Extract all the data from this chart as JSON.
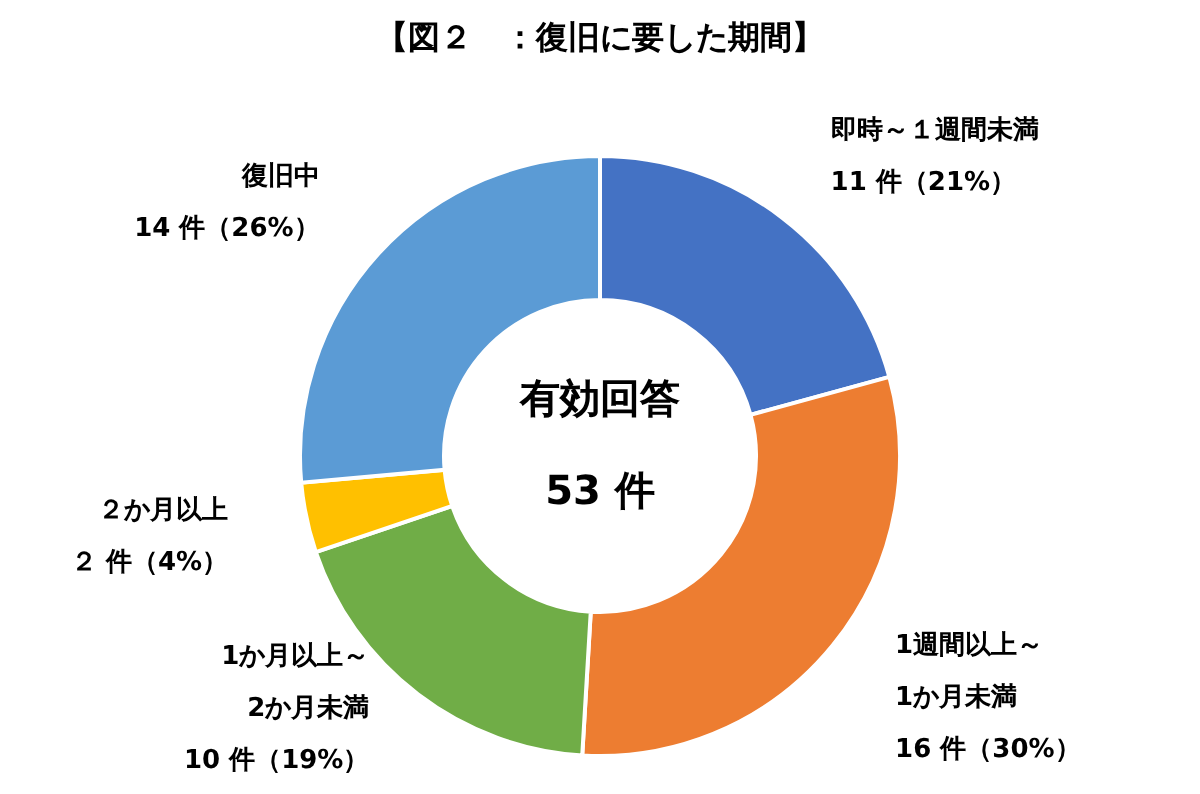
{
  "chart_data": {
    "type": "donut",
    "title": "【図２　：復旧に要した期間】",
    "categories": [
      "即時～１週間未満",
      "1週間以上～\n1か月未満",
      "1か月以上～\n2か月未満",
      "２か月以上",
      "復旧中"
    ],
    "values": [
      11,
      16,
      10,
      2,
      14
    ],
    "value_labels": [
      "11 件（21%）",
      "16 件（30%）",
      "10 件（19%）",
      "２ 件（4%）",
      "14 件（26%）"
    ],
    "colors": [
      "#4472c4",
      "#ed7d31",
      "#70ad47",
      "#ffc000",
      "#5b9bd5"
    ],
    "annotations": [
      "有効回答",
      "53 件"
    ]
  }
}
